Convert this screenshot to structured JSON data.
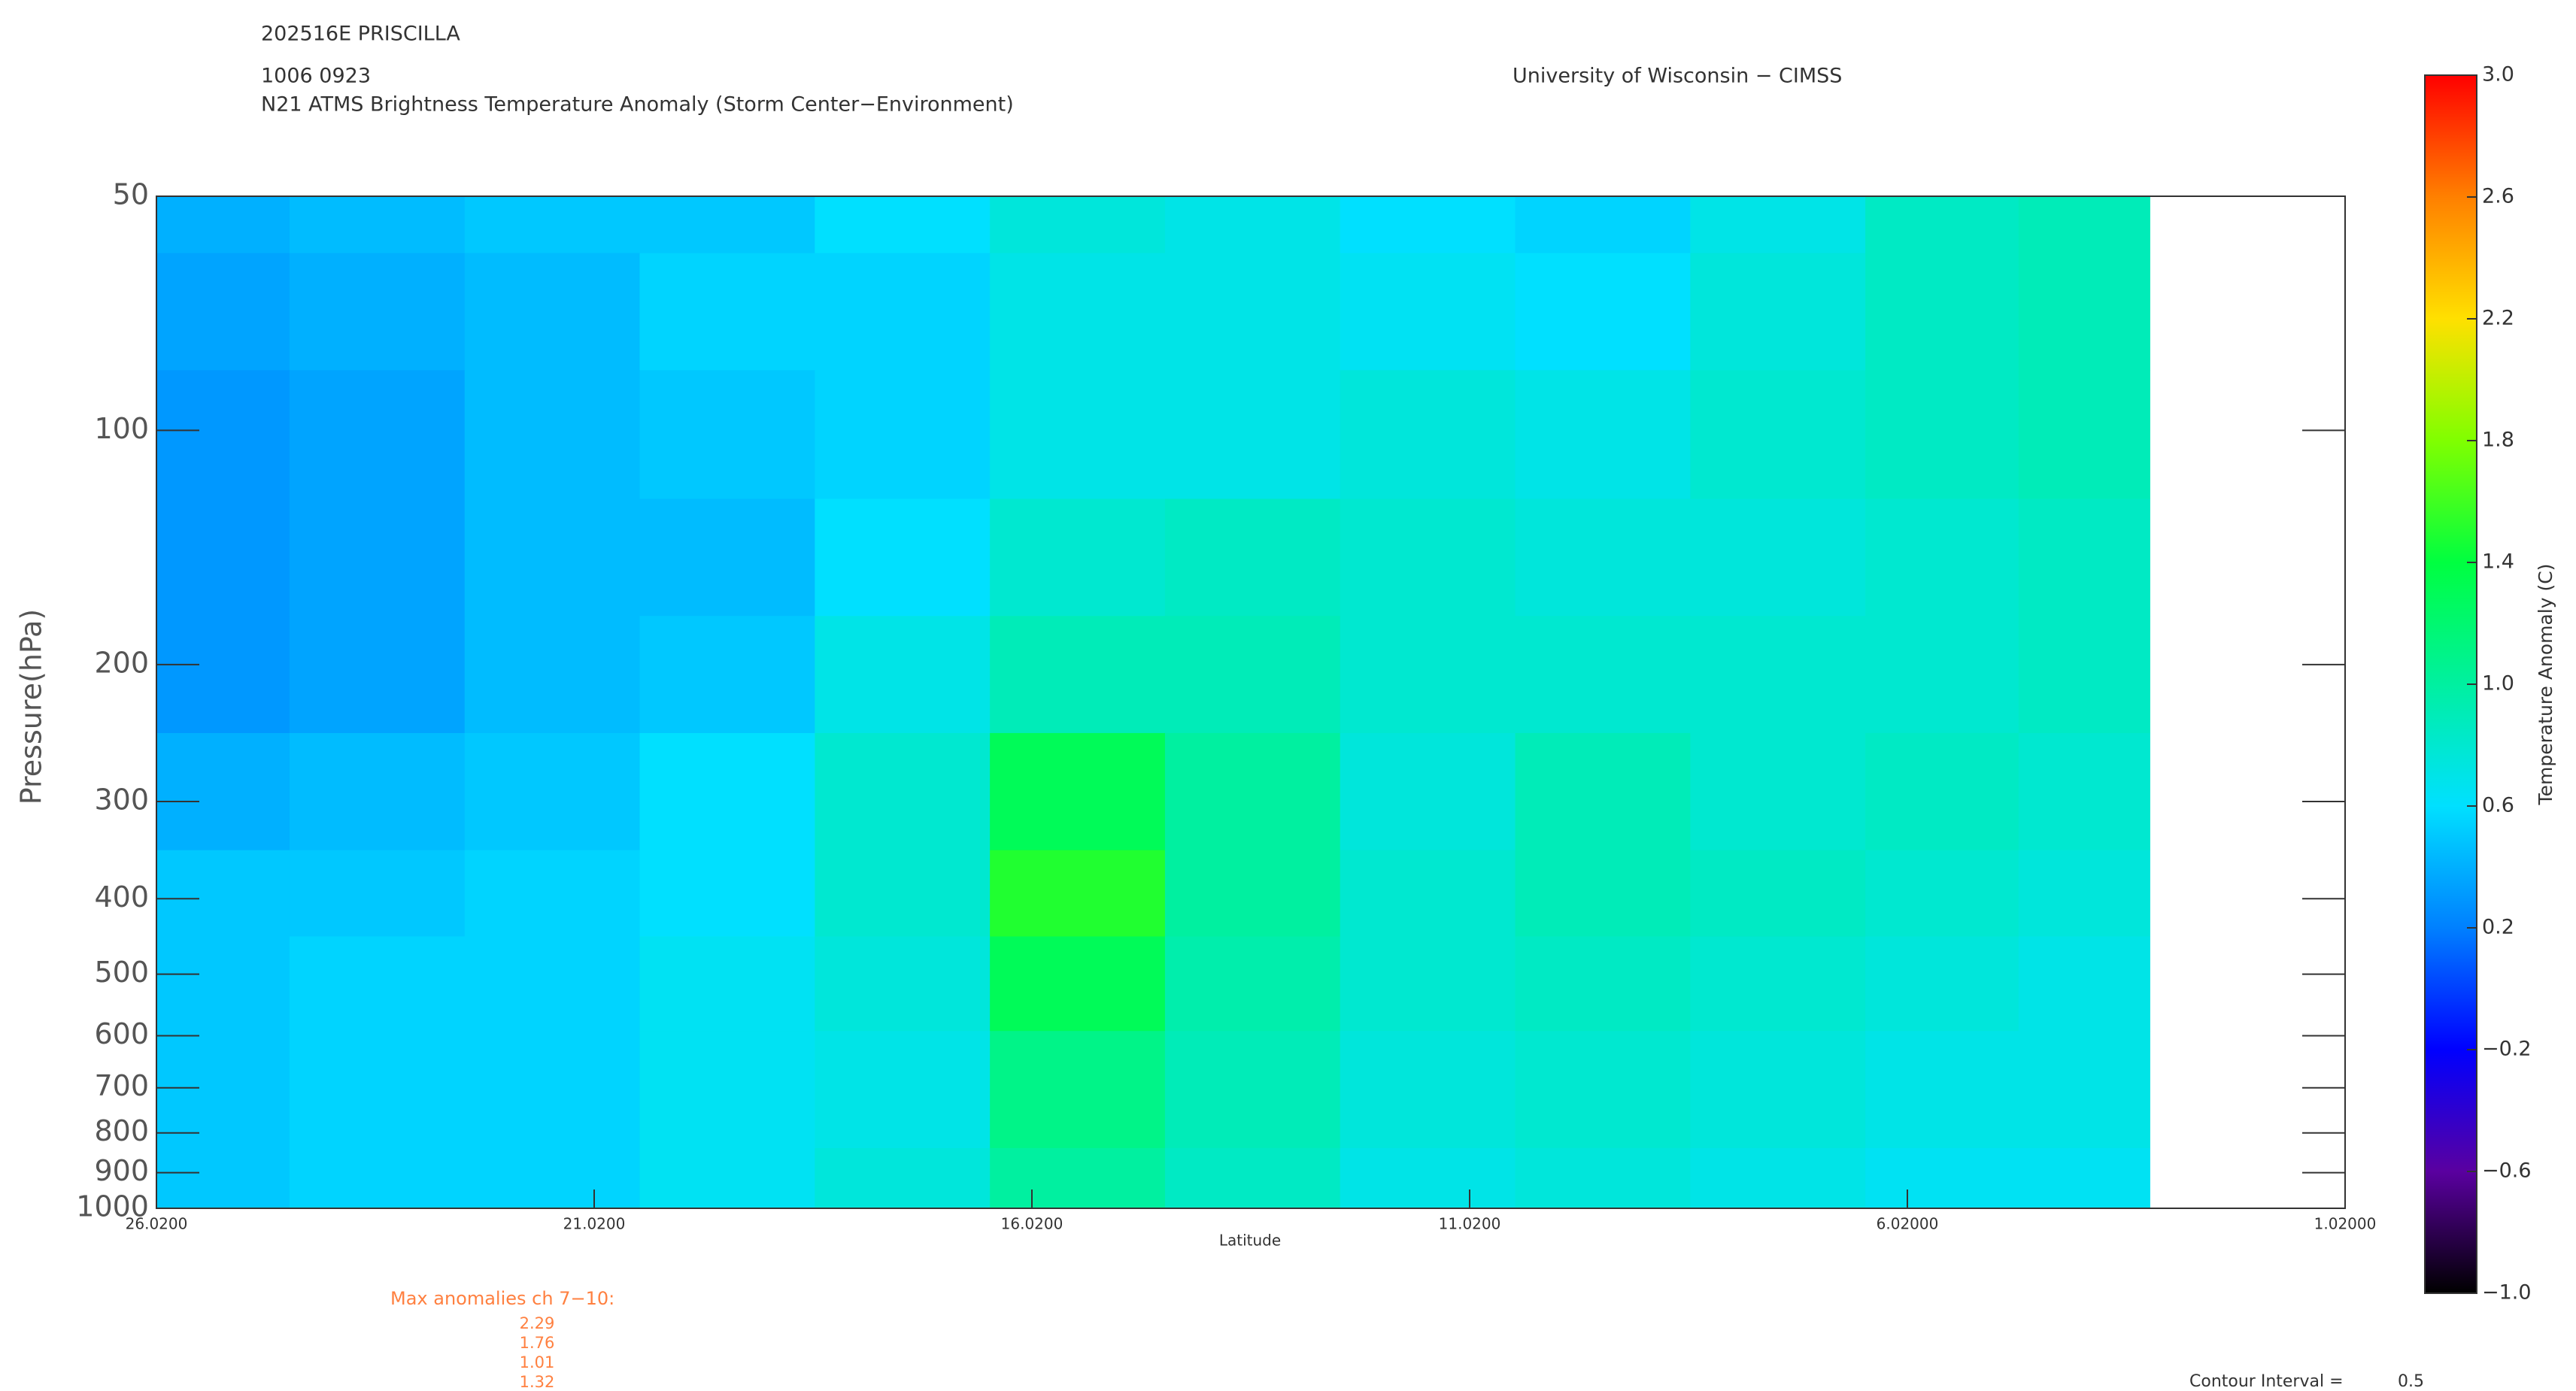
{
  "chart_data": {
    "type": "heatmap",
    "storm": "202516E PRISCILLA",
    "date": "1006 0923",
    "title": "N21 ATMS Brightness Temperature Anomaly (Storm Center−Environment)",
    "source": "University of Wisconsin − CIMSS",
    "xlabel": "Latitude",
    "ylabel": "Pressure(hPa)",
    "colorbar_label": "Temperature Anomaly (C)",
    "xlim": [
      26.02,
      1.02
    ],
    "xticks": [
      {
        "value": 26.02,
        "label": "26.0200"
      },
      {
        "value": 21.02,
        "label": "21.0200"
      },
      {
        "value": 16.02,
        "label": "16.0200"
      },
      {
        "value": 11.02,
        "label": "11.0200"
      },
      {
        "value": 6.02,
        "label": "6.02000"
      },
      {
        "value": 1.02,
        "label": "1.02000"
      }
    ],
    "ylim": [
      1000,
      50
    ],
    "log_y": true,
    "yticks": [
      50,
      100,
      200,
      300,
      400,
      500,
      600,
      700,
      800,
      900,
      1000
    ],
    "clim": [
      -1,
      3
    ],
    "cticks": [
      {
        "value": 3,
        "label": "3.0"
      },
      {
        "value": 2.6,
        "label": "2.6"
      },
      {
        "value": 2.2,
        "label": "2.2"
      },
      {
        "value": 1.8,
        "label": "1.8"
      },
      {
        "value": 1.4,
        "label": "1.4"
      },
      {
        "value": 1,
        "label": "1.0"
      },
      {
        "value": 0.6,
        "label": "0.6"
      },
      {
        "value": 0.2,
        "label": "0.2"
      },
      {
        "value": -0.2,
        "label": "−0.2"
      },
      {
        "value": -0.6,
        "label": "−0.6"
      },
      {
        "value": -1,
        "label": "−1.0"
      }
    ],
    "colormap": [
      "#000000",
      "#5a00a0",
      "#0000ff",
      "#0080ff",
      "#00e0ff",
      "#00f0a0",
      "#00ff40",
      "#80ff00",
      "#ffe000",
      "#ff8000",
      "#ff0000"
    ],
    "x": [
      25.5,
      23.5,
      21.5,
      19.5,
      17.5,
      15.5,
      13.5,
      11.5,
      9.5,
      7.5,
      5.5,
      4.0
    ],
    "y": [
      50,
      70,
      100,
      150,
      200,
      300,
      400,
      500,
      700,
      1000
    ],
    "z": [
      [
        0.4,
        0.45,
        0.5,
        0.5,
        0.6,
        0.75,
        0.7,
        0.6,
        0.55,
        0.7,
        0.85,
        0.9
      ],
      [
        0.35,
        0.4,
        0.45,
        0.55,
        0.55,
        0.7,
        0.7,
        0.65,
        0.6,
        0.75,
        0.85,
        0.9
      ],
      [
        0.3,
        0.35,
        0.45,
        0.5,
        0.55,
        0.7,
        0.7,
        0.75,
        0.7,
        0.8,
        0.85,
        0.9
      ],
      [
        0.3,
        0.35,
        0.45,
        0.45,
        0.6,
        0.8,
        0.85,
        0.8,
        0.75,
        0.75,
        0.8,
        0.85
      ],
      [
        0.3,
        0.35,
        0.45,
        0.5,
        0.7,
        0.9,
        0.9,
        0.8,
        0.8,
        0.8,
        0.8,
        0.85
      ],
      [
        0.4,
        0.45,
        0.5,
        0.6,
        0.8,
        1.3,
        1.0,
        0.75,
        0.9,
        0.8,
        0.85,
        0.8
      ],
      [
        0.5,
        0.5,
        0.55,
        0.6,
        0.8,
        1.5,
        1.0,
        0.8,
        0.9,
        0.85,
        0.8,
        0.75
      ],
      [
        0.5,
        0.55,
        0.55,
        0.65,
        0.75,
        1.3,
        0.95,
        0.8,
        0.85,
        0.8,
        0.75,
        0.7
      ],
      [
        0.5,
        0.55,
        0.55,
        0.65,
        0.7,
        1.1,
        0.9,
        0.75,
        0.8,
        0.75,
        0.7,
        0.7
      ],
      [
        0.5,
        0.55,
        0.55,
        0.65,
        0.75,
        1.0,
        0.85,
        0.7,
        0.75,
        0.7,
        0.65,
        0.65
      ]
    ],
    "max_anomalies_title": "Max anomalies ch 7−10:",
    "max_anomalies": [
      "2.29",
      "1.76",
      "1.01",
      "1.32"
    ],
    "contour_interval_label": "Contour Interval =",
    "contour_interval": "0.5"
  }
}
